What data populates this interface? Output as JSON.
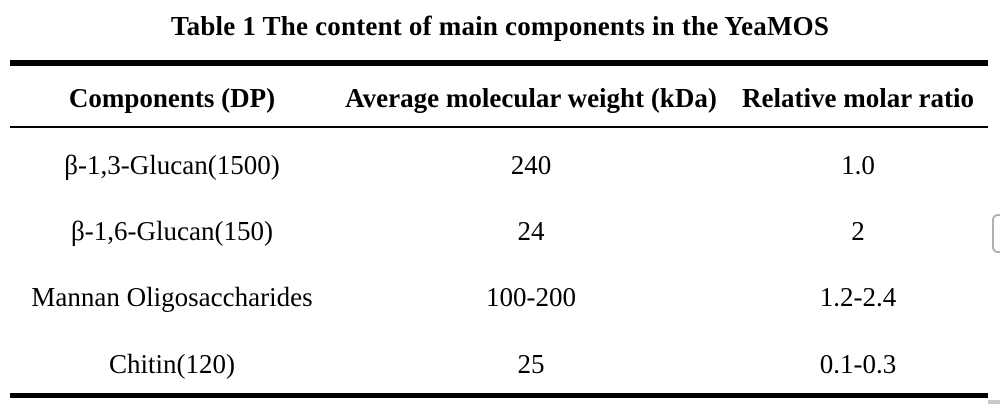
{
  "table": {
    "title": "Table 1 The content of main components in the YeaMOS",
    "columns": [
      "Components (DP)",
      "Average molecular weight (kDa)",
      "Relative molar ratio"
    ],
    "rows": [
      [
        "β-1,3-Glucan(1500)",
        "240",
        "1.0"
      ],
      [
        "β-1,6-Glucan(150)",
        "24",
        "2"
      ],
      [
        "Mannan Oligosaccharides",
        "100-200",
        "1.2-2.4"
      ],
      [
        "Chitin(120)",
        "25",
        "0.1-0.3"
      ]
    ]
  },
  "colors": {
    "text": "#000000",
    "rule": "#000000",
    "edge_widget_border": "#b0b0b0",
    "edge_sliver": "#c9c9c9"
  }
}
